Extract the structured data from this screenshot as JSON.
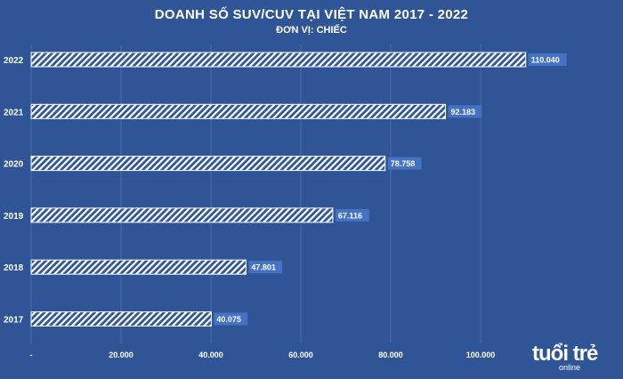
{
  "chart_data": {
    "type": "bar",
    "orientation": "horizontal",
    "title": "DOANH SỐ SUV/CUV TẠI VIỆT NAM 2017 - 2022",
    "subtitle": "ĐƠN VỊ: CHIẾC",
    "categories": [
      "2022",
      "2021",
      "2020",
      "2019",
      "2018",
      "2017"
    ],
    "values": [
      110040,
      92183,
      78758,
      67116,
      47801,
      40075
    ],
    "data_labels": [
      "110.040",
      "92.183",
      "78.758",
      "67.116",
      "47.801",
      "40.075"
    ],
    "x_ticks": [
      {
        "value": 0,
        "label": "-"
      },
      {
        "value": 20000,
        "label": "20.000"
      },
      {
        "value": 40000,
        "label": "40.000"
      },
      {
        "value": 60000,
        "label": "60.000"
      },
      {
        "value": 80000,
        "label": "80.000"
      },
      {
        "value": 100000,
        "label": "100.000"
      }
    ],
    "xlim": [
      0,
      120000
    ],
    "grid": true,
    "bar_style": "white diagonal hatch",
    "colors": {
      "background": "#2f5597",
      "bar": "#ffffff",
      "grid": "#4a6aa8",
      "label_box": "#4472c4"
    }
  },
  "watermark": {
    "line1": "tuổi trẻ",
    "line2": "online"
  }
}
